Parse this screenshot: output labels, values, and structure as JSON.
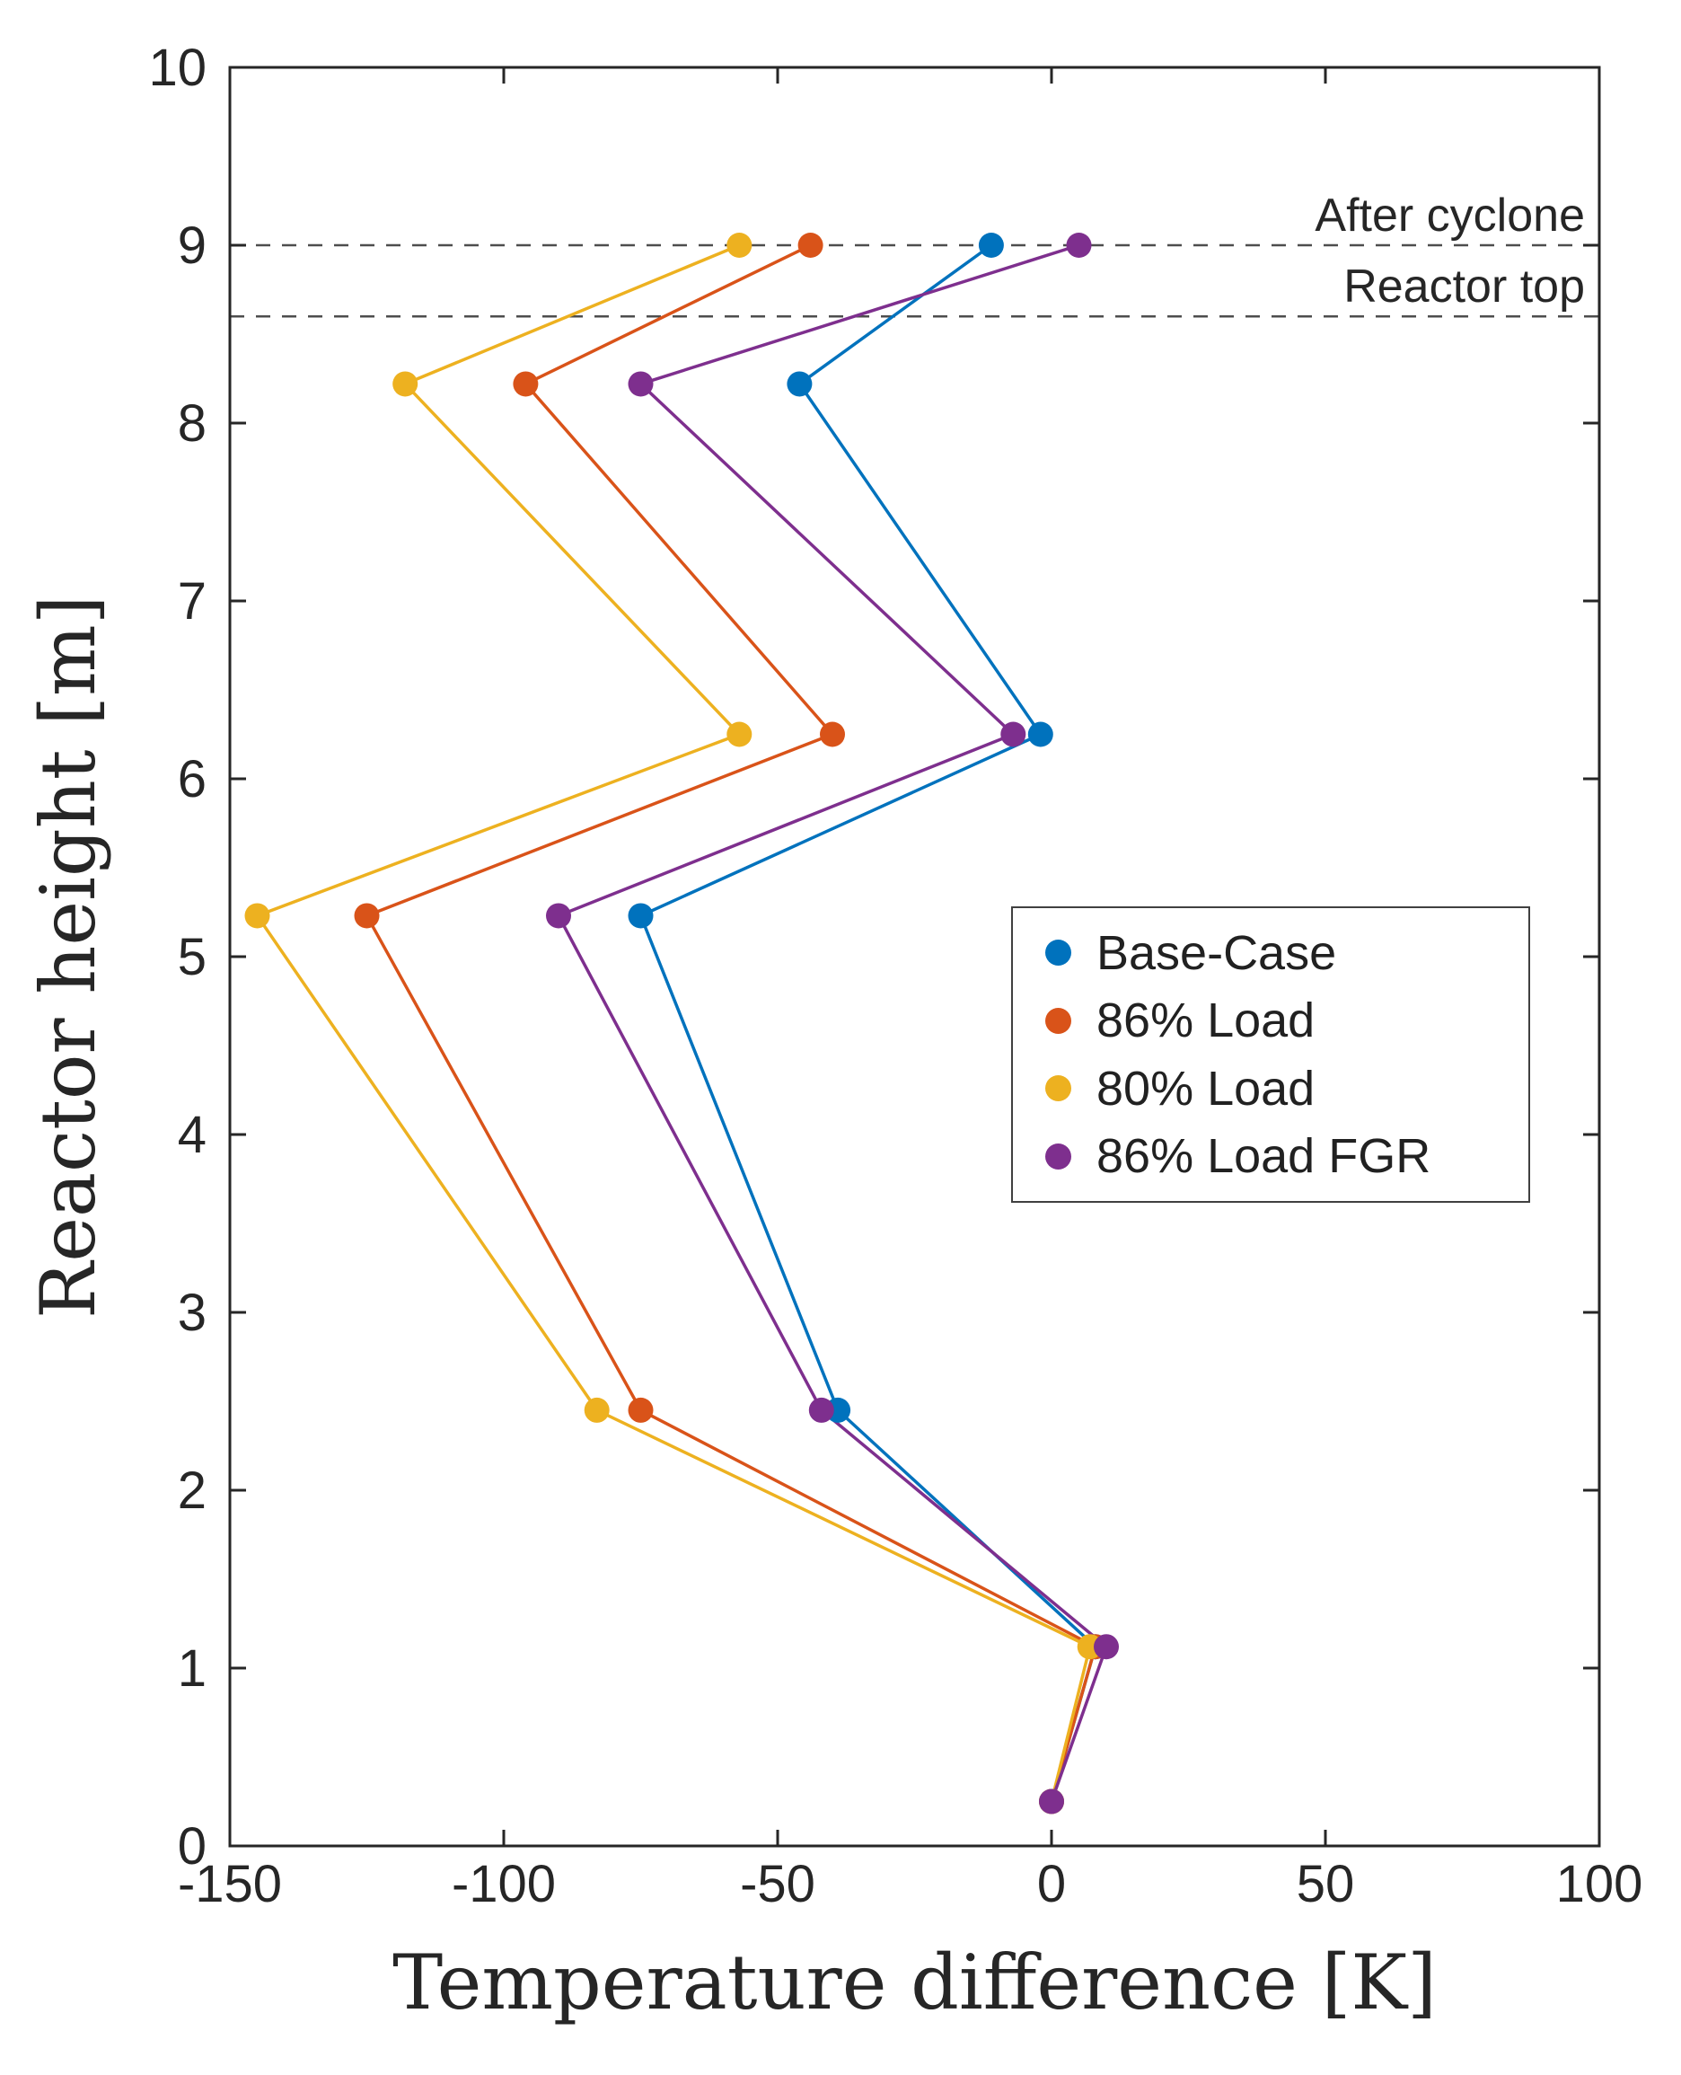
{
  "chart_data": {
    "type": "line",
    "title": "",
    "xlabel": "Temperature difference [K]",
    "ylabel": "Reactor height [m]",
    "xlim": [
      -150,
      100
    ],
    "ylim": [
      0,
      10
    ],
    "xticks": [
      -150,
      -100,
      -50,
      0,
      50,
      100
    ],
    "yticks": [
      0,
      1,
      2,
      3,
      4,
      5,
      6,
      7,
      8,
      9,
      10
    ],
    "grid": false,
    "legend_position": "middle-right",
    "series": [
      {
        "name": "Base-Case",
        "color": "#0072BD",
        "points": [
          [
            0,
            0.25
          ],
          [
            8,
            1.12
          ],
          [
            -39,
            2.45
          ],
          [
            -75,
            5.23
          ],
          [
            -2,
            6.25
          ],
          [
            -46,
            8.22
          ],
          [
            -11,
            9.0
          ]
        ]
      },
      {
        "name": "86% Load",
        "color": "#D95319",
        "points": [
          [
            0,
            0.25
          ],
          [
            8,
            1.12
          ],
          [
            -75,
            2.45
          ],
          [
            -125,
            5.23
          ],
          [
            -40,
            6.25
          ],
          [
            -96,
            8.22
          ],
          [
            -44,
            9.0
          ]
        ]
      },
      {
        "name": "80% Load",
        "color": "#EDB120",
        "points": [
          [
            0,
            0.25
          ],
          [
            7,
            1.12
          ],
          [
            -83,
            2.45
          ],
          [
            -145,
            5.23
          ],
          [
            -57,
            6.25
          ],
          [
            -118,
            8.22
          ],
          [
            -57,
            9.0
          ]
        ]
      },
      {
        "name": "86% Load FGR",
        "color": "#7E2F8E",
        "points": [
          [
            0,
            0.25
          ],
          [
            10,
            1.12
          ],
          [
            -42,
            2.45
          ],
          [
            -90,
            5.23
          ],
          [
            -7,
            6.25
          ],
          [
            -75,
            8.22
          ],
          [
            5,
            9.0
          ]
        ]
      }
    ],
    "annotations": [
      {
        "label": "After cyclone",
        "y": 9.0
      },
      {
        "label": "Reactor top",
        "y": 8.6
      }
    ],
    "annotation_line_color": "#4d4d4d",
    "axis_color": "#262626"
  },
  "legend": {
    "items": [
      {
        "label": "Base-Case",
        "color": "#0072BD"
      },
      {
        "label": "86% Load",
        "color": "#D95319"
      },
      {
        "label": "80% Load",
        "color": "#EDB120"
      },
      {
        "label": "86% Load FGR",
        "color": "#7E2F8E"
      }
    ]
  }
}
